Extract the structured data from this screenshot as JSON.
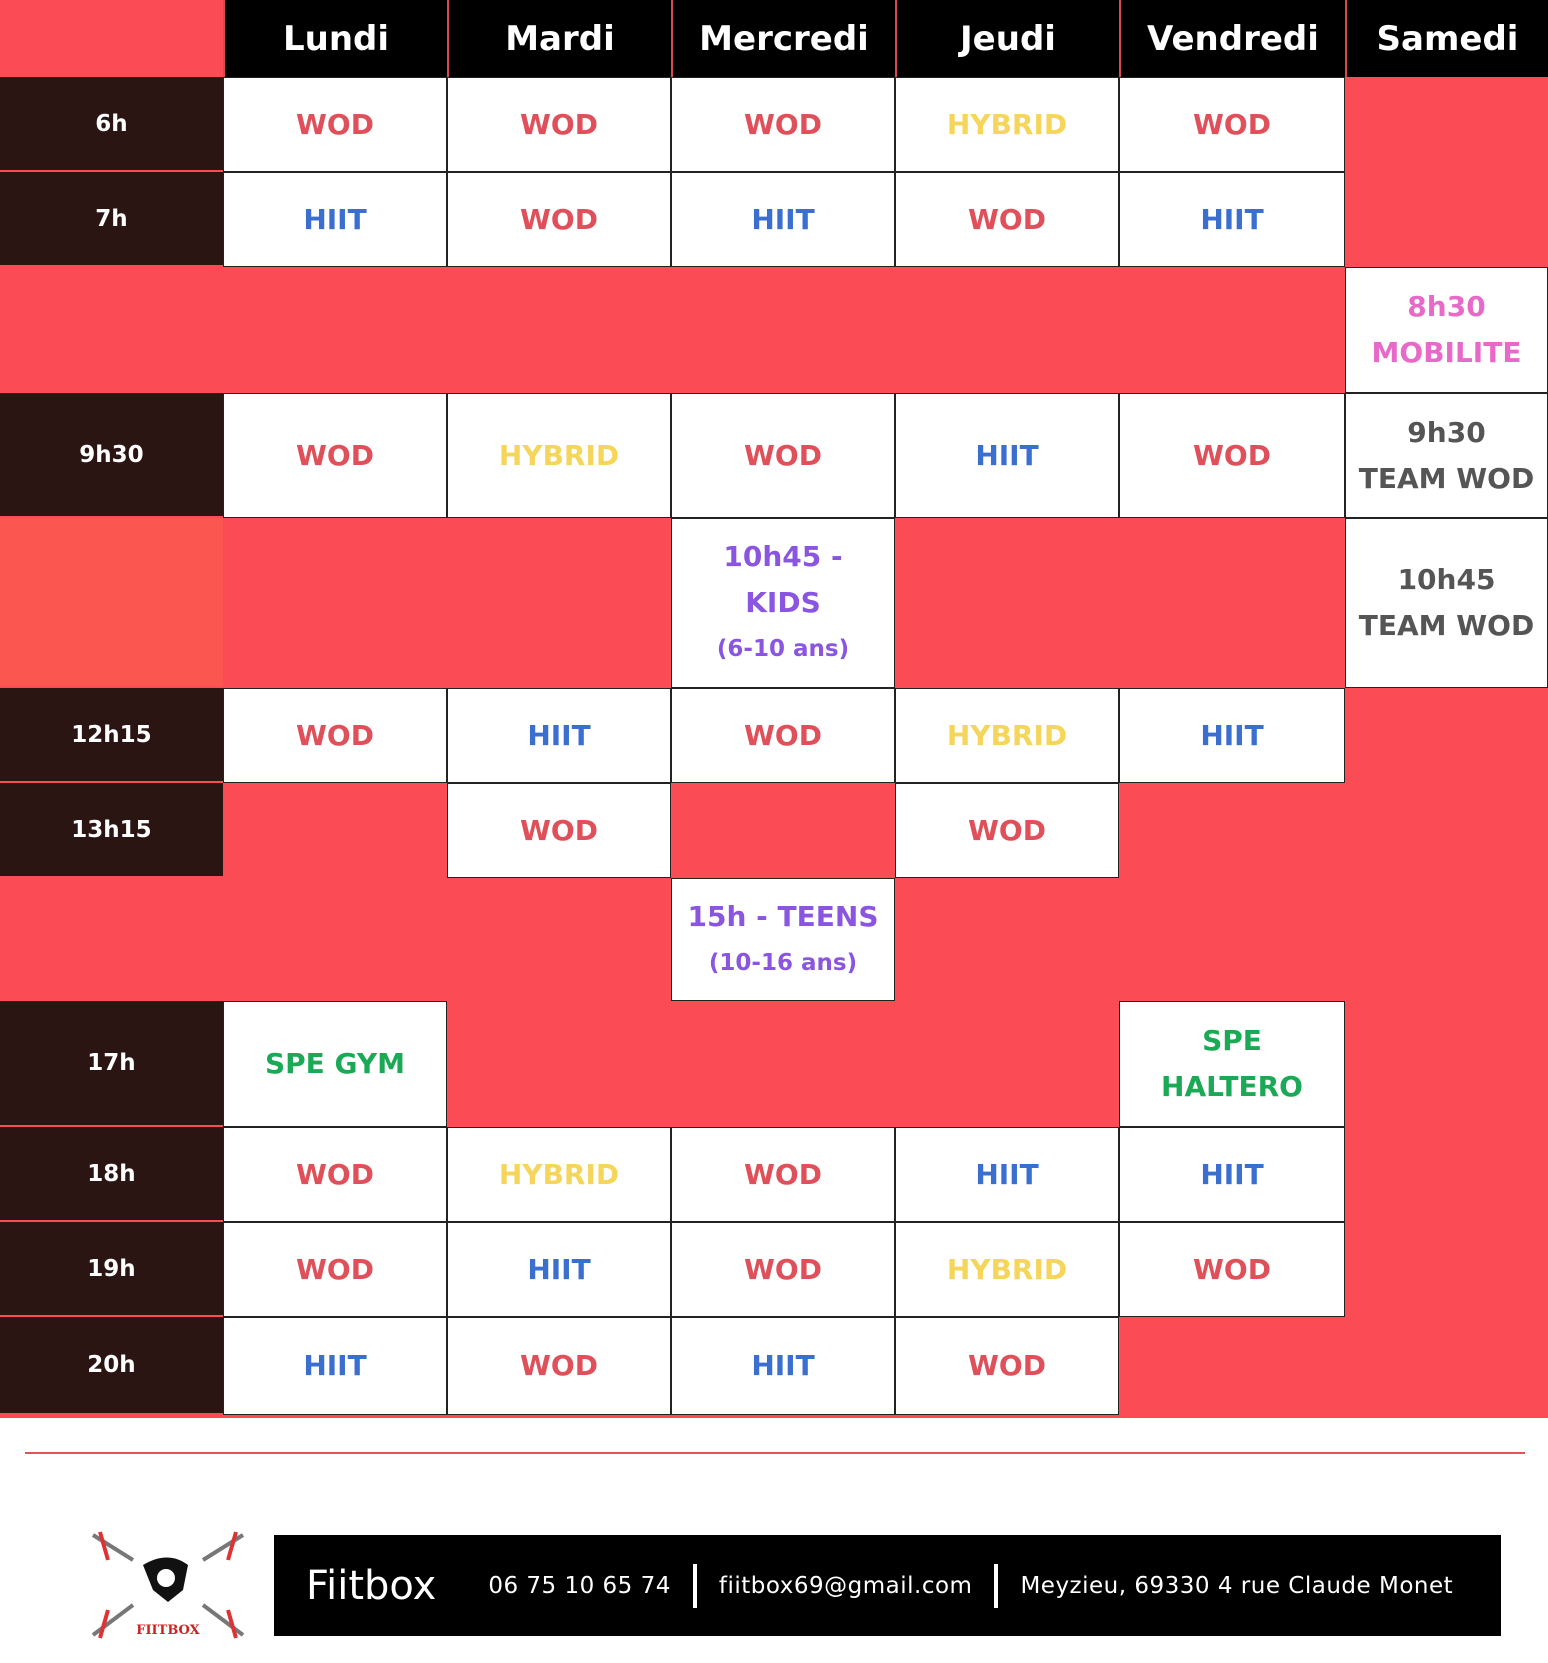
{
  "colors": {
    "background": "#fb4b55",
    "header": "#000000",
    "time": "#2b1512",
    "WOD": "#e0505a",
    "HIIT": "#3a6fd0",
    "HYBRID": "#f5d55a",
    "KIDS": "#8a55e0",
    "SPE": "#1aaa55",
    "MOBILITE": "#e86ac8",
    "TEAM": "#555555"
  },
  "days": [
    "Lundi",
    "Mardi",
    "Mercredi",
    "Jeudi",
    "Vendredi",
    "Samedi"
  ],
  "rows": [
    {
      "time": "6h",
      "cells": [
        {
          "col": 1,
          "lines": [
            "WOD"
          ],
          "c": "WOD"
        },
        {
          "col": 2,
          "lines": [
            "WOD"
          ],
          "c": "WOD"
        },
        {
          "col": 3,
          "lines": [
            "WOD"
          ],
          "c": "WOD"
        },
        {
          "col": 4,
          "lines": [
            "HYBRID"
          ],
          "c": "HYBRID"
        },
        {
          "col": 5,
          "lines": [
            "WOD"
          ],
          "c": "WOD"
        }
      ]
    },
    {
      "time": "7h",
      "cells": [
        {
          "col": 1,
          "lines": [
            "HIIT"
          ],
          "c": "HIIT"
        },
        {
          "col": 2,
          "lines": [
            "WOD"
          ],
          "c": "WOD"
        },
        {
          "col": 3,
          "lines": [
            "HIIT"
          ],
          "c": "HIIT"
        },
        {
          "col": 4,
          "lines": [
            "WOD"
          ],
          "c": "WOD"
        },
        {
          "col": 5,
          "lines": [
            "HIIT"
          ],
          "c": "HIIT"
        }
      ]
    },
    {
      "time": "",
      "cells": [
        {
          "col": 6,
          "lines": [
            "8h30",
            "MOBILITE"
          ],
          "c": "MOBILITE"
        }
      ]
    },
    {
      "time": "9h30",
      "cells": [
        {
          "col": 1,
          "lines": [
            "WOD"
          ],
          "c": "WOD"
        },
        {
          "col": 2,
          "lines": [
            "HYBRID"
          ],
          "c": "HYBRID"
        },
        {
          "col": 3,
          "lines": [
            "WOD"
          ],
          "c": "WOD"
        },
        {
          "col": 4,
          "lines": [
            "HIIT"
          ],
          "c": "HIIT"
        },
        {
          "col": 5,
          "lines": [
            "WOD"
          ],
          "c": "WOD"
        },
        {
          "col": 6,
          "lines": [
            "9h30",
            "TEAM WOD"
          ],
          "c": "TEAM"
        }
      ]
    },
    {
      "time": "",
      "alt": true,
      "cells": [
        {
          "col": 3,
          "lines": [
            "10h45 -",
            "KIDS"
          ],
          "small": "(6-10 ans)",
          "c": "KIDS"
        },
        {
          "col": 6,
          "lines": [
            "10h45",
            "TEAM WOD"
          ],
          "c": "TEAM"
        }
      ]
    },
    {
      "time": "12h15",
      "cells": [
        {
          "col": 1,
          "lines": [
            "WOD"
          ],
          "c": "WOD"
        },
        {
          "col": 2,
          "lines": [
            "HIIT"
          ],
          "c": "HIIT"
        },
        {
          "col": 3,
          "lines": [
            "WOD"
          ],
          "c": "WOD"
        },
        {
          "col": 4,
          "lines": [
            "HYBRID"
          ],
          "c": "HYBRID"
        },
        {
          "col": 5,
          "lines": [
            "HIIT"
          ],
          "c": "HIIT"
        }
      ]
    },
    {
      "time": "13h15",
      "cells": [
        {
          "col": 2,
          "lines": [
            "WOD"
          ],
          "c": "WOD"
        },
        {
          "col": 4,
          "lines": [
            "WOD"
          ],
          "c": "WOD"
        }
      ]
    },
    {
      "time": "",
      "cells": [
        {
          "col": 3,
          "lines": [
            "15h - TEENS"
          ],
          "small": "(10-16 ans)",
          "c": "KIDS"
        }
      ]
    },
    {
      "time": "17h",
      "cells": [
        {
          "col": 1,
          "lines": [
            "SPE GYM"
          ],
          "c": "SPE"
        },
        {
          "col": 5,
          "lines": [
            "SPE",
            "HALTERO"
          ],
          "c": "SPE"
        }
      ]
    },
    {
      "time": "18h",
      "cells": [
        {
          "col": 1,
          "lines": [
            "WOD"
          ],
          "c": "WOD"
        },
        {
          "col": 2,
          "lines": [
            "HYBRID"
          ],
          "c": "HYBRID"
        },
        {
          "col": 3,
          "lines": [
            "WOD"
          ],
          "c": "WOD"
        },
        {
          "col": 4,
          "lines": [
            "HIIT"
          ],
          "c": "HIIT"
        },
        {
          "col": 5,
          "lines": [
            "HIIT"
          ],
          "c": "HIIT"
        }
      ]
    },
    {
      "time": "19h",
      "cells": [
        {
          "col": 1,
          "lines": [
            "WOD"
          ],
          "c": "WOD"
        },
        {
          "col": 2,
          "lines": [
            "HIIT"
          ],
          "c": "HIIT"
        },
        {
          "col": 3,
          "lines": [
            "WOD"
          ],
          "c": "WOD"
        },
        {
          "col": 4,
          "lines": [
            "HYBRID"
          ],
          "c": "HYBRID"
        },
        {
          "col": 5,
          "lines": [
            "WOD"
          ],
          "c": "WOD"
        }
      ]
    },
    {
      "time": "20h",
      "cells": [
        {
          "col": 1,
          "lines": [
            "HIIT"
          ],
          "c": "HIIT"
        },
        {
          "col": 2,
          "lines": [
            "WOD"
          ],
          "c": "WOD"
        },
        {
          "col": 3,
          "lines": [
            "HIIT"
          ],
          "c": "HIIT"
        },
        {
          "col": 4,
          "lines": [
            "WOD"
          ],
          "c": "WOD"
        }
      ]
    }
  ],
  "footer": {
    "logo_text": "FIITBOX",
    "brand": "Fiitbox",
    "phone": "06 75 10 65 74",
    "email": "fiitbox69@gmail.com",
    "address": "Meyzieu, 69330 4 rue Claude Monet"
  }
}
